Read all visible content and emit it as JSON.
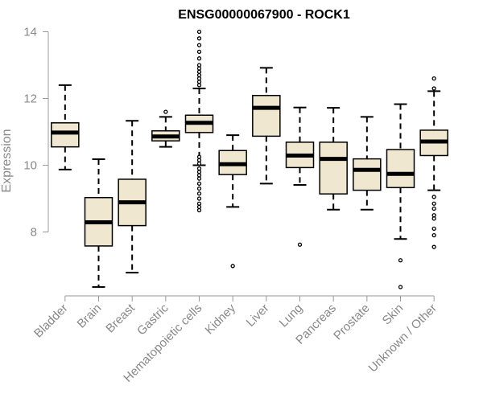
{
  "chart_data": {
    "type": "boxplot",
    "title": "ENSG00000067900 - ROCK1",
    "xlabel": "",
    "ylabel": "Expression",
    "ylim": [
      6.3,
      14.0
    ],
    "yticks": [
      8,
      10,
      12,
      14
    ],
    "grid": false,
    "colors": {
      "box_fill": "#efe7cf",
      "stroke": "#000000",
      "axis": "#999999",
      "tick_text": "#888888"
    },
    "categories": [
      "Bladder",
      "Brain",
      "Breast",
      "Gastric",
      "Hematopoietic cells",
      "Kidney",
      "Liver",
      "Lung",
      "Pancreas",
      "Prostate",
      "Skin",
      "Unknown / Other"
    ],
    "series": [
      {
        "name": "Bladder",
        "whisker_low": 9.87,
        "q1": 10.55,
        "median": 10.98,
        "q3": 11.27,
        "whisker_high": 12.4,
        "outliers": []
      },
      {
        "name": "Brain",
        "whisker_low": 6.35,
        "q1": 7.58,
        "median": 8.29,
        "q3": 9.03,
        "whisker_high": 10.18,
        "outliers": []
      },
      {
        "name": "Breast",
        "whisker_low": 6.78,
        "q1": 8.19,
        "median": 8.89,
        "q3": 9.58,
        "whisker_high": 11.33,
        "outliers": []
      },
      {
        "name": "Gastric",
        "whisker_low": 10.55,
        "q1": 10.73,
        "median": 10.86,
        "q3": 11.03,
        "whisker_high": 11.45,
        "outliers": [
          11.6
        ]
      },
      {
        "name": "Hematopoietic cells",
        "whisker_low": 10.0,
        "q1": 10.98,
        "median": 11.27,
        "q3": 11.5,
        "whisker_high": 12.3,
        "outliers": [
          8.65,
          8.75,
          8.85,
          9.0,
          9.15,
          9.3,
          9.45,
          9.6,
          9.7,
          9.8,
          9.9,
          10.05,
          10.15,
          10.25,
          12.4,
          12.5,
          12.6,
          12.7,
          12.8,
          12.9,
          13.0,
          13.2,
          13.4,
          13.6,
          13.8,
          14.0
        ]
      },
      {
        "name": "Kidney",
        "whisker_low": 8.75,
        "q1": 9.72,
        "median": 10.03,
        "q3": 10.44,
        "whisker_high": 10.9,
        "outliers": [
          6.98
        ]
      },
      {
        "name": "Liver",
        "whisker_low": 9.45,
        "q1": 10.87,
        "median": 11.72,
        "q3": 12.09,
        "whisker_high": 12.92,
        "outliers": []
      },
      {
        "name": "Lung",
        "whisker_low": 9.41,
        "q1": 9.93,
        "median": 10.29,
        "q3": 10.69,
        "whisker_high": 11.73,
        "outliers": [
          7.62
        ]
      },
      {
        "name": "Pancreas",
        "whisker_low": 8.67,
        "q1": 9.14,
        "median": 10.19,
        "q3": 10.69,
        "whisker_high": 11.72,
        "outliers": []
      },
      {
        "name": "Prostate",
        "whisker_low": 8.67,
        "q1": 9.25,
        "median": 9.86,
        "q3": 10.19,
        "whisker_high": 11.45,
        "outliers": []
      },
      {
        "name": "Skin",
        "whisker_low": 7.79,
        "q1": 9.33,
        "median": 9.74,
        "q3": 10.47,
        "whisker_high": 11.83,
        "outliers": [
          6.35,
          7.15
        ]
      },
      {
        "name": "Unknown / Other",
        "whisker_low": 9.25,
        "q1": 10.29,
        "median": 10.71,
        "q3": 11.05,
        "whisker_high": 12.22,
        "outliers": [
          7.55,
          7.9,
          8.1,
          8.4,
          8.5,
          8.7,
          8.85,
          9.05,
          12.3,
          12.6
        ]
      }
    ]
  }
}
